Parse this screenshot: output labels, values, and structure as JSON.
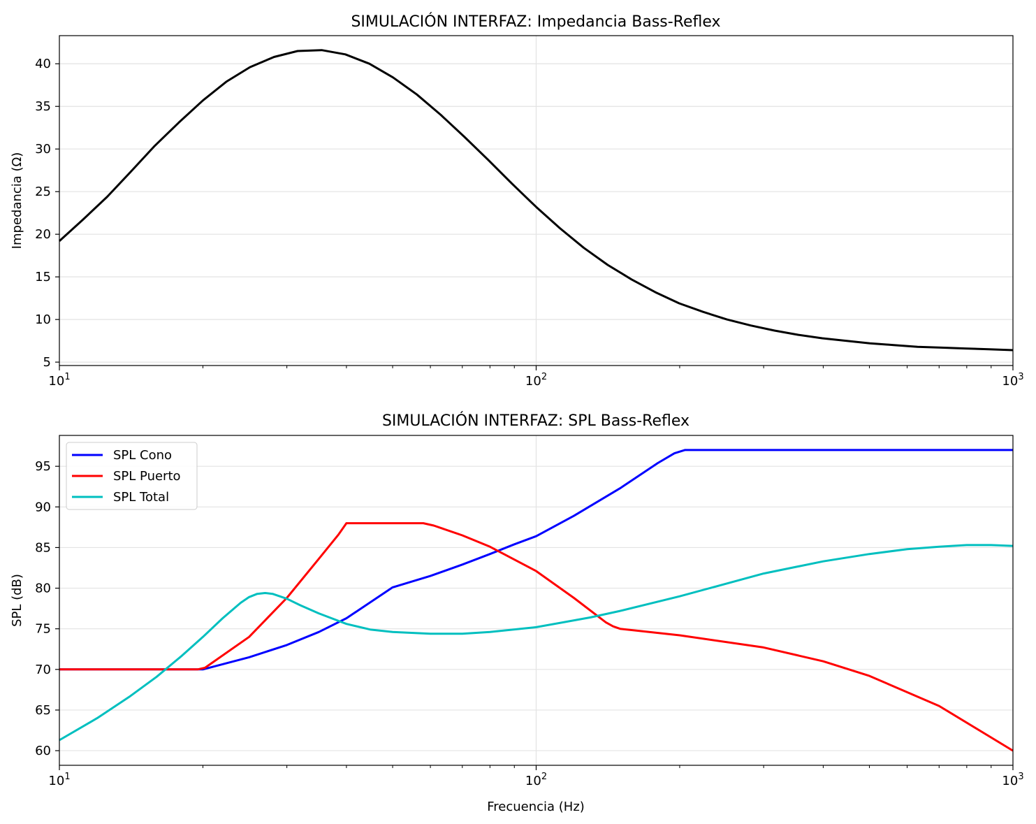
{
  "chart_data": [
    {
      "type": "line",
      "title": "SIMULACIÓN INTERFAZ: Impedancia Bass-Reflex",
      "xlabel": "",
      "ylabel": "Impedancia (Ω)",
      "xscale": "log",
      "xlim": [
        10,
        1000
      ],
      "ylim": [
        4.6,
        43.3
      ],
      "xticks": [
        {
          "value": 10,
          "base": "10",
          "exp": "1"
        },
        {
          "value": 100,
          "base": "10",
          "exp": "2"
        },
        {
          "value": 1000,
          "base": "10",
          "exp": "3"
        }
      ],
      "yticks": [
        5,
        10,
        15,
        20,
        25,
        30,
        35,
        40
      ],
      "grid": true,
      "legend": null,
      "series": [
        {
          "color": "#000000",
          "x": [
            10,
            11.2,
            12.6,
            14.1,
            15.8,
            17.8,
            20,
            22.4,
            25.1,
            28.2,
            31.6,
            35.5,
            39.8,
            44.7,
            50.1,
            56.2,
            63.1,
            70.8,
            79.4,
            89.1,
            100,
            112.2,
            125.9,
            141.3,
            158.5,
            177.8,
            199.5,
            223.9,
            251.2,
            281.8,
            316.2,
            354.8,
            398.1,
            446.7,
            501.2,
            562.3,
            631,
            707.9,
            794.3,
            891.3,
            1000
          ],
          "y": [
            19.2,
            21.7,
            24.4,
            27.3,
            30.3,
            33.1,
            35.7,
            37.9,
            39.6,
            40.8,
            41.5,
            41.6,
            41.1,
            40.0,
            38.4,
            36.4,
            34.0,
            31.4,
            28.7,
            25.9,
            23.2,
            20.7,
            18.4,
            16.4,
            14.7,
            13.2,
            11.9,
            10.9,
            10.0,
            9.3,
            8.7,
            8.2,
            7.8,
            7.5,
            7.2,
            7.0,
            6.8,
            6.7,
            6.6,
            6.5,
            6.4
          ]
        }
      ]
    },
    {
      "type": "line",
      "title": "SIMULACIÓN INTERFAZ: SPL Bass-Reflex",
      "xlabel": "Frecuencia (Hz)",
      "ylabel": "SPL (dB)",
      "xscale": "log",
      "xlim": [
        10,
        1000
      ],
      "ylim": [
        58.2,
        98.8
      ],
      "xticks": [
        {
          "value": 10,
          "base": "10",
          "exp": "1"
        },
        {
          "value": 100,
          "base": "10",
          "exp": "2"
        },
        {
          "value": 1000,
          "base": "10",
          "exp": "3"
        }
      ],
      "yticks": [
        60,
        65,
        70,
        75,
        80,
        85,
        90,
        95
      ],
      "grid": true,
      "legend": "top-left",
      "series": [
        {
          "name": "SPL Cono",
          "color": "#0000ff",
          "x": [
            10,
            20,
            25,
            30,
            35,
            40,
            48,
            50,
            60,
            70,
            80,
            90,
            100,
            120,
            150,
            180,
            195,
            205,
            300,
            500,
            1000
          ],
          "y": [
            70,
            70,
            71.5,
            73,
            74.6,
            76.3,
            79.4,
            80.1,
            81.5,
            82.9,
            84.2,
            85.4,
            86.4,
            88.9,
            92.3,
            95.4,
            96.6,
            97,
            97,
            97,
            97
          ],
          "legend_label": "SPL Cono"
        },
        {
          "name": "SPL Puerto",
          "color": "#ff0000",
          "x": [
            10,
            15,
            19.5,
            20.2,
            25,
            30,
            35,
            38.5,
            40,
            50,
            58,
            61,
            70,
            80,
            100,
            120,
            140,
            145,
            150,
            200,
            300,
            400,
            500,
            700,
            1000
          ],
          "y": [
            70,
            70,
            70,
            70.2,
            74,
            78.8,
            83.6,
            86.6,
            88,
            88,
            88,
            87.7,
            86.5,
            85.1,
            82.1,
            78.8,
            75.8,
            75.3,
            75,
            74.2,
            72.7,
            71,
            69.2,
            65.5,
            60
          ],
          "legend_label": "SPL Puerto"
        },
        {
          "name": "SPL Total",
          "color": "#00bfbf",
          "x": [
            10,
            12,
            14,
            16,
            18,
            20,
            22,
            24,
            25,
            26,
            27,
            28,
            30,
            32,
            35,
            40,
            45,
            50,
            60,
            70,
            80,
            100,
            130,
            150,
            200,
            300,
            400,
            500,
            600,
            700,
            800,
            900,
            1000
          ],
          "y": [
            61.3,
            64,
            66.6,
            69.1,
            71.6,
            74,
            76.3,
            78.2,
            78.9,
            79.3,
            79.4,
            79.3,
            78.7,
            77.9,
            76.9,
            75.6,
            74.9,
            74.6,
            74.4,
            74.4,
            74.6,
            75.2,
            76.4,
            77.2,
            79,
            81.8,
            83.3,
            84.2,
            84.8,
            85.1,
            85.3,
            85.3,
            85.2
          ],
          "legend_label": "SPL Total"
        }
      ]
    }
  ]
}
